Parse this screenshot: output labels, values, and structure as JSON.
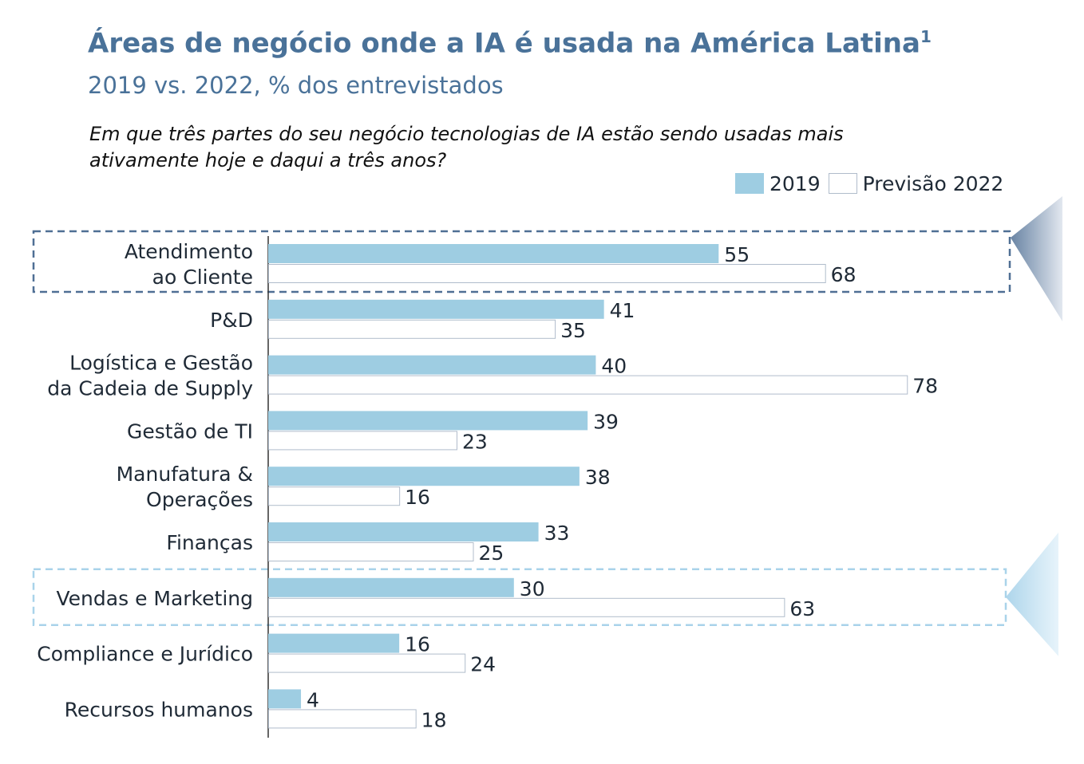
{
  "header": {
    "title": "Áreas de negócio onde a IA é usada na América Latina",
    "title_footnote": "1",
    "subtitle": "2019 vs. 2022, % dos entrevistados",
    "question": "Em que três partes do seu negócio tecnologias de IA estão sendo usadas mais ativamente hoje e daqui a três anos?"
  },
  "colors": {
    "title": "#4a7299",
    "bar_2019": "#9ecde2",
    "bar_2022_border": "#b0bccb",
    "highlight_dark": "#4f6f94",
    "highlight_light": "#a9d3ea",
    "text": "#1f2a36"
  },
  "chart_data": {
    "type": "bar",
    "orientation": "horizontal",
    "title": "Áreas de negócio onde a IA é usada na América Latina",
    "subtitle": "2019 vs. 2022, % dos entrevistados",
    "legend_placement": "top-right",
    "grid": false,
    "xlim": [
      0,
      85
    ],
    "categories": [
      [
        "Atendimento",
        "ao Cliente"
      ],
      [
        "P&D"
      ],
      [
        "Logística e Gestão",
        "da Cadeia de Supply"
      ],
      [
        "Gestão de TI"
      ],
      [
        "Manufatura &",
        "Operações"
      ],
      [
        "Finanças"
      ],
      [
        "Vendas e Marketing"
      ],
      [
        "Compliance e Jurídico"
      ],
      [
        "Recursos humanos"
      ]
    ],
    "series": [
      {
        "name": "2019",
        "values": [
          55,
          41,
          40,
          39,
          38,
          33,
          30,
          16,
          4
        ]
      },
      {
        "name": "Previsão 2022",
        "values": [
          68,
          35,
          78,
          23,
          16,
          25,
          63,
          24,
          18
        ]
      }
    ],
    "highlighted_categories": [
      {
        "index": 0,
        "style": "dark"
      },
      {
        "index": 6,
        "style": "light"
      }
    ]
  }
}
